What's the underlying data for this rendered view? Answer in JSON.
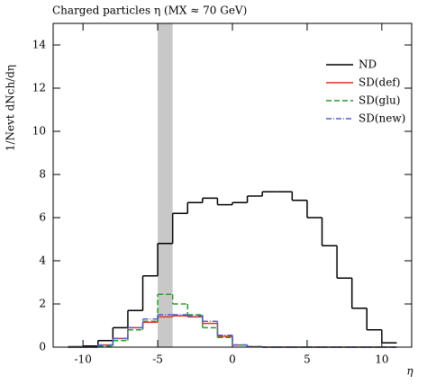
{
  "chart_data": {
    "type": "histogram",
    "title": "Charged particles η (MX ≈ 70 GeV)",
    "x_label": "η",
    "y_label": "1/Nevt dNch/dη",
    "bins": [
      -11,
      -10,
      -9,
      -8,
      -7,
      -6,
      -5,
      -4,
      -3,
      -2,
      -1,
      0,
      1,
      2,
      3,
      4,
      5,
      6,
      7,
      8,
      9,
      10,
      11
    ],
    "series": [
      {
        "name": "ND",
        "color": "#000000",
        "dash": "none",
        "values": [
          0.02,
          0.05,
          0.3,
          0.9,
          1.7,
          3.3,
          4.8,
          6.2,
          6.7,
          6.9,
          6.6,
          6.7,
          7.0,
          7.2,
          7.2,
          6.8,
          6.0,
          4.7,
          3.2,
          1.8,
          0.8,
          0.2
        ]
      },
      {
        "name": "SD(def)",
        "color": "#e03020",
        "dash": "none",
        "values": [
          0,
          0,
          0.1,
          0.4,
          0.9,
          1.15,
          1.4,
          1.45,
          1.4,
          1.1,
          0.5,
          0.1,
          0.02,
          0,
          0,
          0,
          0,
          0,
          0,
          0,
          0,
          0
        ]
      },
      {
        "name": "SD(glu)",
        "color": "#2a9a2a",
        "dash": "6,3",
        "values": [
          0,
          0,
          0.05,
          0.3,
          0.8,
          1.2,
          2.45,
          2.0,
          1.5,
          0.9,
          0.45,
          0.1,
          0.02,
          0,
          0,
          0,
          0,
          0,
          0,
          0,
          0,
          0
        ]
      },
      {
        "name": "SD(new)",
        "color": "#5060d0",
        "dash": "6,2,1,2",
        "values": [
          0,
          0,
          0.1,
          0.4,
          0.9,
          1.3,
          1.5,
          1.5,
          1.45,
          1.2,
          0.55,
          0.1,
          0.02,
          0,
          0,
          0,
          0,
          0,
          0,
          0,
          0,
          0
        ]
      }
    ],
    "highlight_band": [
      -5,
      -4
    ],
    "xlim": [
      -12,
      12
    ],
    "xticks": [
      -10,
      -5,
      0,
      5,
      10
    ],
    "ylim": [
      0,
      15
    ],
    "yticks": [
      0,
      2,
      4,
      6,
      8,
      10,
      12,
      14
    ],
    "legend": "upper right"
  }
}
